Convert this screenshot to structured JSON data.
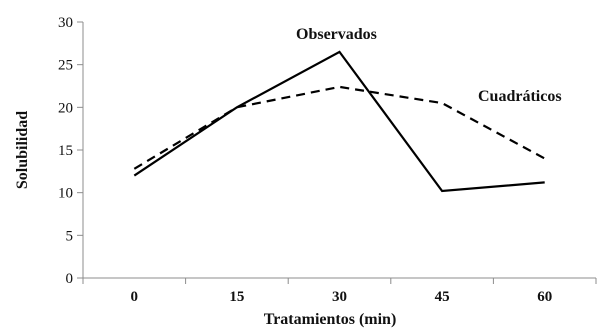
{
  "chart_data": {
    "type": "line",
    "categories": [
      "0",
      "15",
      "30",
      "45",
      "60"
    ],
    "x": [
      0,
      15,
      30,
      45,
      60
    ],
    "xlabel": "Tratamientos (min)",
    "ylabel": "Solubilidad",
    "ylim": [
      0,
      30
    ],
    "yticks": [
      0,
      5,
      10,
      15,
      20,
      25,
      30
    ],
    "grid": false,
    "legend": "none",
    "series": [
      {
        "name": "Observados",
        "values": [
          12.0,
          20.0,
          26.5,
          10.2,
          11.2
        ],
        "color": "#000000",
        "dash": "solid"
      },
      {
        "name": "Cuadráticos",
        "values": [
          12.8,
          20.0,
          22.4,
          20.5,
          14.0
        ],
        "color": "#000000",
        "dash": "dashed"
      }
    ]
  }
}
